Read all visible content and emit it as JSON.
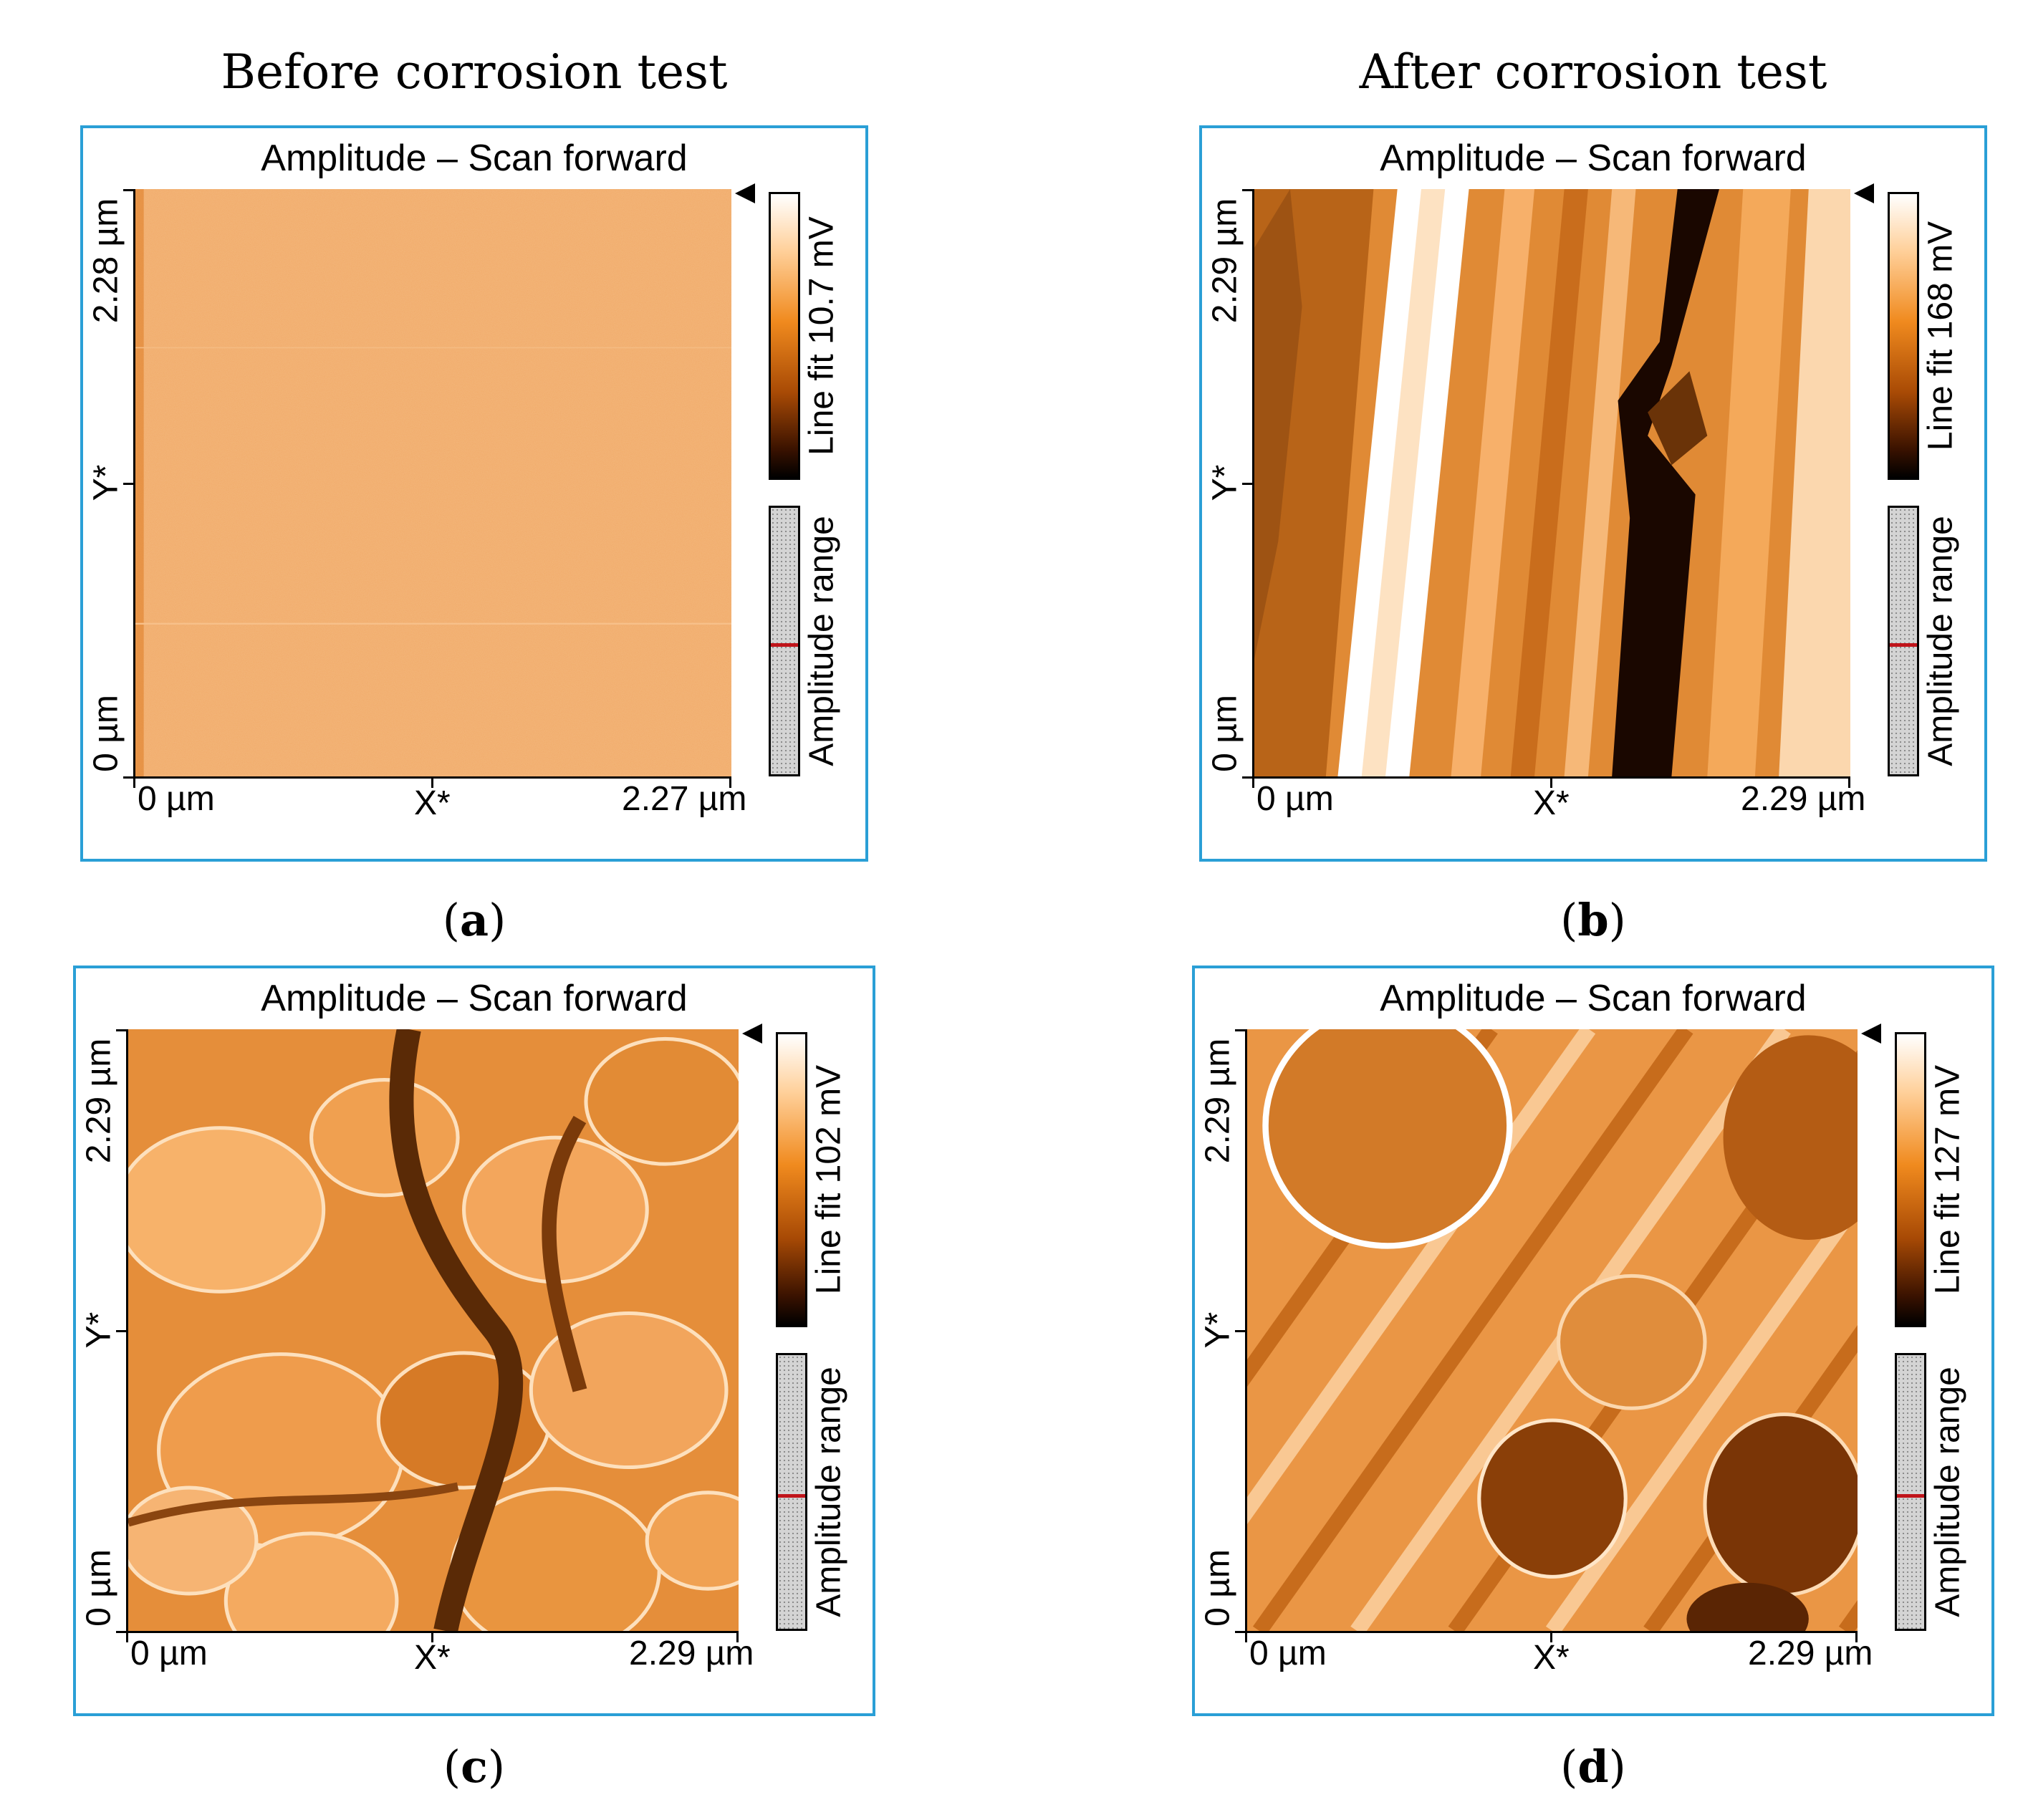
{
  "headings": {
    "left": "Before corrosion test",
    "right": "After corrosion test"
  },
  "panels": [
    {
      "id": "a",
      "caption": "a",
      "title": "Amplitude – Scan forward",
      "y_max_label": "2.28 µm",
      "y_min_label": "0 µm",
      "y_axis": "Y*",
      "x_min_label": "0 µm",
      "x_max_label": "2.27 µm",
      "x_axis": "X*",
      "colorbar_label": "Line fit 10.7 mV",
      "range_label": "Amplitude range",
      "texture": "smooth"
    },
    {
      "id": "b",
      "caption": "b",
      "title": "Amplitude – Scan forward",
      "y_max_label": "2.29 µm",
      "y_min_label": "0 µm",
      "y_axis": "Y*",
      "x_min_label": "0 µm",
      "x_max_label": "2.29 µm",
      "x_axis": "X*",
      "colorbar_label": "Line fit 168 mV",
      "range_label": "Amplitude range",
      "texture": "streaks"
    },
    {
      "id": "c",
      "caption": "c",
      "title": "Amplitude – Scan forward",
      "y_max_label": "2.29 µm",
      "y_min_label": "0 µm",
      "y_axis": "Y*",
      "x_min_label": "0 µm",
      "x_max_label": "2.29 µm",
      "x_axis": "X*",
      "colorbar_label": "Line fit 102 mV",
      "range_label": "Amplitude range",
      "texture": "grains"
    },
    {
      "id": "d",
      "caption": "d",
      "title": "Amplitude – Scan forward",
      "y_max_label": "2.29 µm",
      "y_min_label": "0 µm",
      "y_axis": "Y*",
      "x_min_label": "0 µm",
      "x_max_label": "2.29 µm",
      "x_axis": "X*",
      "colorbar_label": "Line fit 127 mV",
      "range_label": "Amplitude range",
      "texture": "blobs"
    }
  ]
}
